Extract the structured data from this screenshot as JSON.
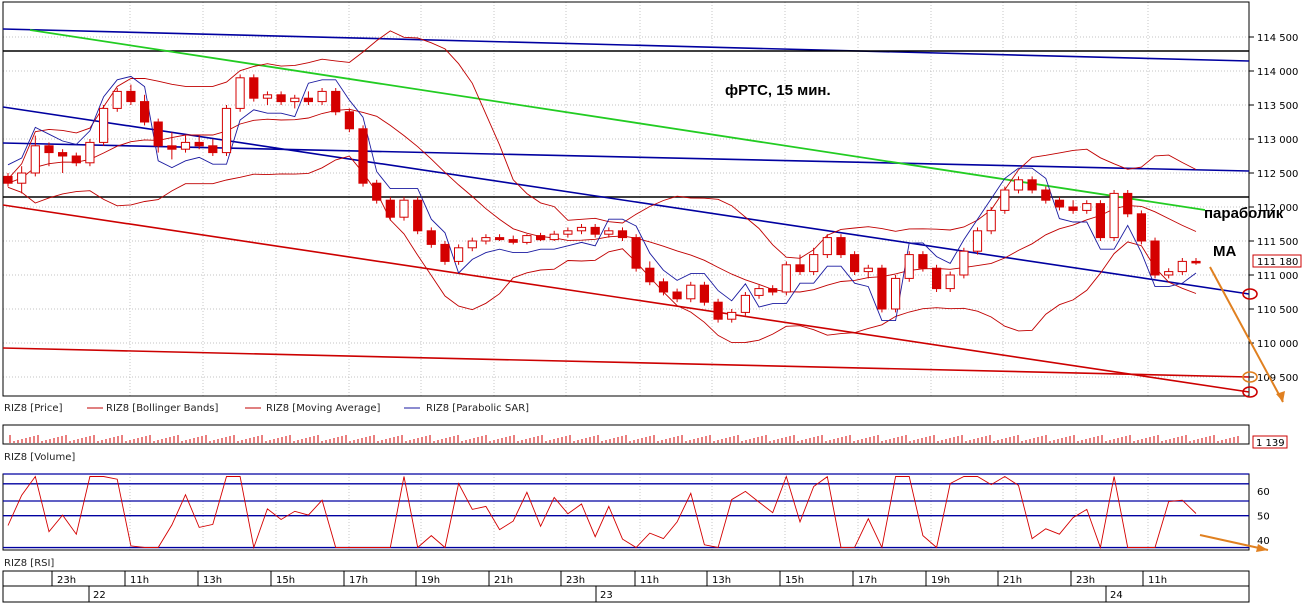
{
  "title": "фРТС, 15 мин.",
  "annotations": {
    "parabolic": "параболик",
    "ma": "MA"
  },
  "price_badge": "111 180",
  "volume_badge": "1 139",
  "legend": {
    "price": "RIZ8 [Price]",
    "bollinger": "RIZ8 [Bollinger Bands]",
    "ma": "RIZ8 [Moving Average]",
    "sar": "RIZ8 [Parabolic SAR]",
    "volume": "RIZ8 [Volume]",
    "rsi": "RIZ8 [RSI]"
  },
  "colors": {
    "candle": "#d40000",
    "band": "#c00000",
    "sar": "#1a1aa0",
    "trend_blue": "#0000a0",
    "trend_green": "#22cc22",
    "trend_red": "#cc0000",
    "level": "#000000",
    "arrow": "#e08020",
    "grid": "#b0b0b0"
  },
  "chart_data": [
    {
      "type": "candlestick",
      "title": "фРТС, 15 мин.",
      "y_ticks": [
        "114 500",
        "114 000",
        "113 500",
        "113 000",
        "112 500",
        "112 000",
        "111 500",
        "111 000",
        "110 500",
        "110 000",
        "109 500"
      ],
      "ylim": [
        109300,
        114800
      ],
      "last_price": 111180,
      "candles": [
        [
          112450,
          112500,
          112300,
          112350
        ],
        [
          112350,
          112600,
          112200,
          112500
        ],
        [
          112500,
          113050,
          112450,
          112900
        ],
        [
          112900,
          112950,
          112600,
          112800
        ],
        [
          112800,
          112850,
          112500,
          112750
        ],
        [
          112750,
          112800,
          112600,
          112650
        ],
        [
          112650,
          113000,
          112600,
          112950
        ],
        [
          112950,
          113500,
          112900,
          113450
        ],
        [
          113450,
          113750,
          113400,
          113700
        ],
        [
          113700,
          113800,
          113500,
          113550
        ],
        [
          113550,
          113650,
          113200,
          113250
        ],
        [
          113250,
          113300,
          112800,
          112900
        ],
        [
          112900,
          113100,
          112700,
          112850
        ],
        [
          112850,
          113050,
          112800,
          112950
        ],
        [
          112950,
          113050,
          112850,
          112900
        ],
        [
          112900,
          113000,
          112750,
          112800
        ],
        [
          112800,
          113500,
          112750,
          113450
        ],
        [
          113450,
          113950,
          113400,
          113900
        ],
        [
          113900,
          113950,
          113550,
          113600
        ],
        [
          113600,
          113700,
          113500,
          113650
        ],
        [
          113650,
          113700,
          113500,
          113550
        ],
        [
          113550,
          113650,
          113450,
          113600
        ],
        [
          113600,
          113700,
          113500,
          113550
        ],
        [
          113550,
          113750,
          113500,
          113700
        ],
        [
          113700,
          113750,
          113350,
          113400
        ],
        [
          113400,
          113450,
          113100,
          113150
        ],
        [
          113150,
          113200,
          112300,
          112350
        ],
        [
          112350,
          112400,
          112050,
          112100
        ],
        [
          112100,
          112150,
          111800,
          111850
        ],
        [
          111850,
          112150,
          111800,
          112100
        ],
        [
          112100,
          112150,
          111600,
          111650
        ],
        [
          111650,
          111700,
          111400,
          111450
        ],
        [
          111450,
          111500,
          111150,
          111200
        ],
        [
          111200,
          111450,
          111150,
          111400
        ],
        [
          111400,
          111550,
          111350,
          111500
        ],
        [
          111500,
          111600,
          111450,
          111550
        ],
        [
          111550,
          111600,
          111500,
          111520
        ],
        [
          111520,
          111580,
          111450,
          111480
        ],
        [
          111480,
          111600,
          111450,
          111580
        ],
        [
          111580,
          111620,
          111500,
          111520
        ],
        [
          111520,
          111650,
          111500,
          111600
        ],
        [
          111600,
          111700,
          111550,
          111650
        ],
        [
          111650,
          111750,
          111600,
          111700
        ],
        [
          111700,
          111750,
          111550,
          111600
        ],
        [
          111600,
          111700,
          111550,
          111650
        ],
        [
          111650,
          111700,
          111500,
          111550
        ],
        [
          111550,
          111600,
          111050,
          111100
        ],
        [
          111100,
          111200,
          110850,
          110900
        ],
        [
          110900,
          110950,
          110700,
          110750
        ],
        [
          110750,
          110800,
          110600,
          110650
        ],
        [
          110650,
          110900,
          110600,
          110850
        ],
        [
          110850,
          110900,
          110550,
          110600
        ],
        [
          110600,
          110650,
          110300,
          110350
        ],
        [
          110350,
          110500,
          110300,
          110450
        ],
        [
          110450,
          110750,
          110400,
          110700
        ],
        [
          110700,
          110850,
          110650,
          110800
        ],
        [
          110800,
          110850,
          110700,
          110750
        ],
        [
          110750,
          111200,
          110700,
          111150
        ],
        [
          111150,
          111300,
          111000,
          111050
        ],
        [
          111050,
          111400,
          111000,
          111300
        ],
        [
          111300,
          111600,
          111250,
          111550
        ],
        [
          111550,
          111600,
          111250,
          111300
        ],
        [
          111300,
          111350,
          111000,
          111050
        ],
        [
          111050,
          111150,
          110950,
          111100
        ],
        [
          111100,
          111150,
          110450,
          110500
        ],
        [
          110500,
          111000,
          110450,
          110950
        ],
        [
          110950,
          111350,
          110900,
          111300
        ],
        [
          111300,
          111350,
          111050,
          111100
        ],
        [
          111100,
          111150,
          110750,
          110800
        ],
        [
          110800,
          111050,
          110750,
          111000
        ],
        [
          111000,
          111400,
          110950,
          111350
        ],
        [
          111350,
          111700,
          111300,
          111650
        ],
        [
          111650,
          112000,
          111600,
          111950
        ],
        [
          111950,
          112300,
          111900,
          112250
        ],
        [
          112250,
          112450,
          112200,
          112400
        ],
        [
          112400,
          112450,
          112200,
          112250
        ],
        [
          112250,
          112300,
          112050,
          112100
        ],
        [
          112100,
          112150,
          111950,
          112000
        ],
        [
          112000,
          112100,
          111900,
          111950
        ],
        [
          111950,
          112100,
          111900,
          112050
        ],
        [
          112050,
          112100,
          111500,
          111550
        ],
        [
          111550,
          112250,
          111500,
          112200
        ],
        [
          112200,
          112250,
          111850,
          111900
        ],
        [
          111900,
          111950,
          111450,
          111500
        ],
        [
          111500,
          111550,
          110950,
          111000
        ],
        [
          111000,
          111100,
          110950,
          111050
        ],
        [
          111050,
          111250,
          111000,
          111200
        ],
        [
          111200,
          111250,
          111150,
          111180
        ]
      ]
    },
    {
      "type": "bar",
      "name": "volume",
      "last_value": 1139
    },
    {
      "type": "line",
      "name": "rsi",
      "y_ticks": [
        "60",
        "50",
        "40"
      ],
      "ylim": [
        36,
        67
      ],
      "levels": [
        67,
        63,
        56,
        50,
        37
      ]
    }
  ],
  "x_axis": {
    "hours": [
      "23h",
      "11h",
      "13h",
      "15h",
      "17h",
      "19h",
      "21h",
      "23h",
      "11h",
      "13h",
      "15h",
      "17h",
      "19h",
      "21h",
      "23h",
      "11h"
    ],
    "days": [
      "22",
      "23",
      "24"
    ]
  }
}
